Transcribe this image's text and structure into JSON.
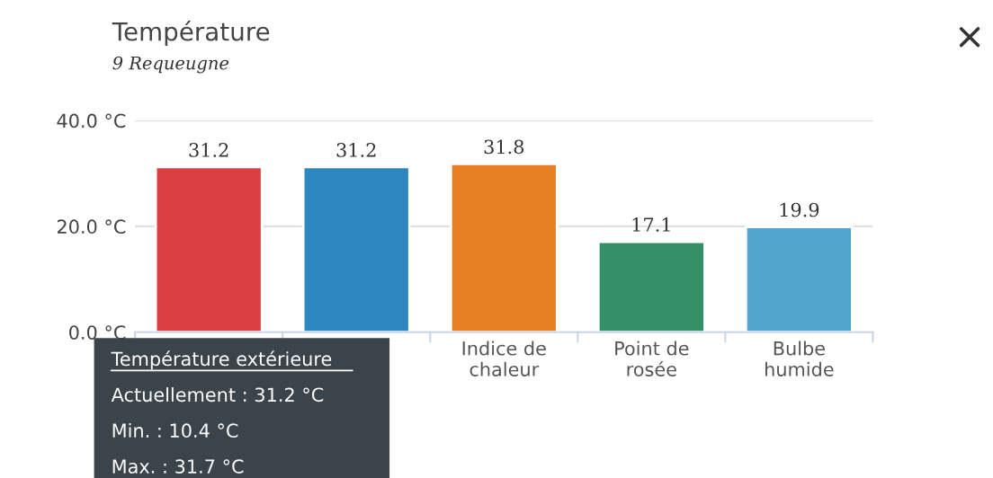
{
  "chart_data": {
    "type": "bar",
    "title": "Température",
    "subtitle": "9 Requeugne",
    "categories": [
      null,
      null,
      "Indice de\nchaleur",
      "Point de\nrosée",
      "Bulbe\nhumide"
    ],
    "values": [
      31.2,
      31.2,
      31.8,
      17.1,
      19.9
    ],
    "colors": [
      "#dc3f41",
      "#2e86c1",
      "#e67e22",
      "#338f66",
      "#52a5cc"
    ],
    "ylim": [
      0,
      40
    ],
    "yticks": [
      {
        "value": 0,
        "label": "0.0 °C"
      },
      {
        "value": 20,
        "label": "20.0 °C"
      },
      {
        "value": 40,
        "label": "40.0 °C"
      }
    ],
    "grid": "y",
    "data_labels": true,
    "annotations": [
      "Température extérieure",
      "Actuellement : 31.2 °C",
      "Min. : 10.4 °C",
      "Max. : 31.7 °C"
    ]
  }
}
